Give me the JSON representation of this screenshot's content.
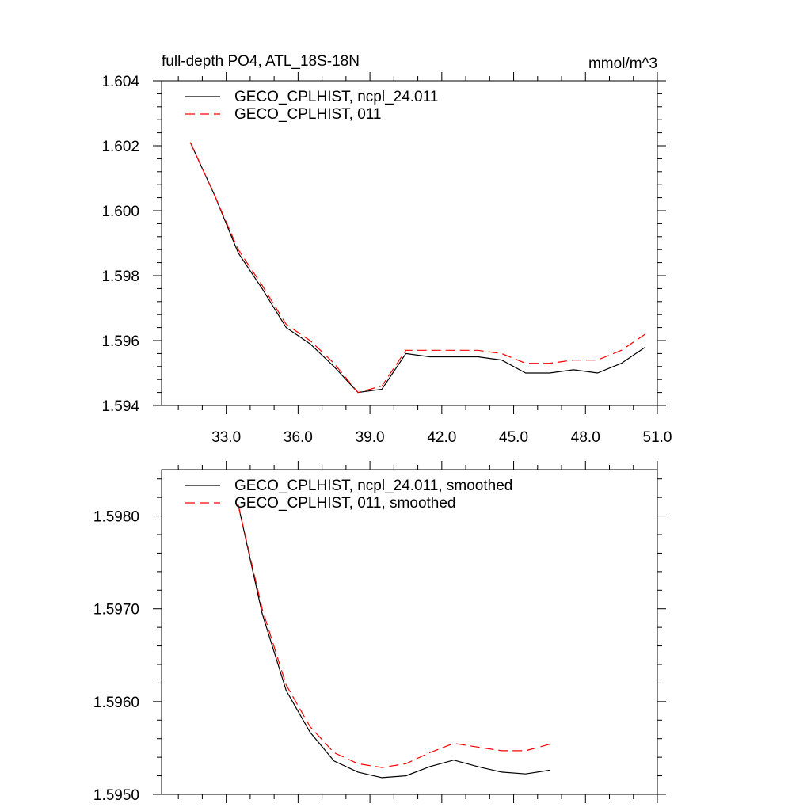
{
  "chart_data": [
    {
      "type": "line",
      "title": "full-depth PO4, ATL_18S-18N",
      "units": "mmol/m^3",
      "xlabel": "",
      "ylabel": "",
      "xlim": [
        30.3,
        51.0
      ],
      "ylim": [
        1.594,
        1.604
      ],
      "xticks": [
        33,
        36,
        39,
        42,
        45,
        48,
        51
      ],
      "xtick_labels": [
        "33.0",
        "36.0",
        "39.0",
        "42.0",
        "45.0",
        "48.0",
        "51.0"
      ],
      "yticks": [
        1.594,
        1.596,
        1.598,
        1.6,
        1.602,
        1.604
      ],
      "ytick_labels": [
        "1.594",
        "1.596",
        "1.598",
        "1.600",
        "1.602",
        "1.604"
      ],
      "x": [
        31.5,
        32.5,
        33.5,
        34.5,
        35.5,
        36.5,
        37.5,
        38.5,
        39.5,
        40.5,
        41.5,
        42.5,
        43.5,
        44.5,
        45.5,
        46.5,
        47.5,
        48.5,
        49.5,
        50.5
      ],
      "series": [
        {
          "name": "GECO_CPLHIST, ncpl_24.011",
          "color": "#000000",
          "dash": "solid",
          "values": [
            1.6021,
            1.6005,
            1.5987,
            1.5976,
            1.5964,
            1.5959,
            1.5952,
            1.5944,
            1.5945,
            1.5956,
            1.5955,
            1.5955,
            1.5955,
            1.5954,
            1.595,
            1.595,
            1.5951,
            1.595,
            1.5953,
            1.5958
          ]
        },
        {
          "name": "GECO_CPLHIST, 011",
          "color": "#ff0000",
          "dash": "dashed",
          "values": [
            1.6021,
            1.6005,
            1.5988,
            1.5977,
            1.5965,
            1.596,
            1.5953,
            1.5944,
            1.5946,
            1.5957,
            1.5957,
            1.5957,
            1.5957,
            1.5956,
            1.5953,
            1.5953,
            1.5954,
            1.5954,
            1.5957,
            1.5962
          ]
        }
      ],
      "legend_position": "top-left"
    },
    {
      "type": "line",
      "title": "",
      "xlabel": "",
      "ylabel": "",
      "xlim": [
        30.3,
        51.0
      ],
      "ylim": [
        1.595,
        1.5985
      ],
      "xticks": [
        33,
        36,
        39,
        42,
        45,
        48,
        51
      ],
      "yticks": [
        1.595,
        1.596,
        1.597,
        1.598
      ],
      "ytick_labels": [
        "1.5950",
        "1.5960",
        "1.5970",
        "1.5980"
      ],
      "x": [
        33.5,
        34.5,
        35.5,
        36.5,
        37.5,
        38.5,
        39.5,
        40.5,
        41.5,
        42.5,
        43.5,
        44.5,
        45.5,
        46.5,
        47.5
      ],
      "series": [
        {
          "name": "GECO_CPLHIST, ncpl_24.011, smoothed",
          "color": "#000000",
          "dash": "solid",
          "values": [
            1.59812,
            1.59695,
            1.59612,
            1.59567,
            1.59536,
            1.59524,
            1.59518,
            1.5952,
            1.5953,
            1.59537,
            1.5953,
            1.59524,
            1.59522,
            1.59526,
            null
          ]
        },
        {
          "name": "GECO_CPLHIST, 011, smoothed",
          "color": "#ff0000",
          "dash": "dashed",
          "values": [
            1.59812,
            1.597,
            1.59618,
            1.59573,
            1.59545,
            1.59533,
            1.59529,
            1.59533,
            1.59545,
            1.59555,
            1.59551,
            1.59547,
            1.59547,
            1.59554,
            null
          ]
        }
      ],
      "legend_position": "top-left"
    }
  ]
}
